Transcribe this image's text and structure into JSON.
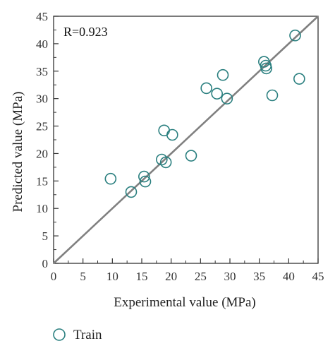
{
  "chart_data": {
    "type": "scatter",
    "title": "",
    "xlabel": "Experimental value (MPa)",
    "ylabel": "Predicted value (MPa)",
    "xlim": [
      0,
      45
    ],
    "ylim": [
      0,
      45
    ],
    "xticks": [
      "0",
      "5",
      "10",
      "15",
      "20",
      "25",
      "30",
      "35",
      "40",
      "45"
    ],
    "yticks": [
      "0",
      "5",
      "10",
      "15",
      "20",
      "25",
      "30",
      "35",
      "40",
      "45"
    ],
    "annotation": "R=0.923",
    "grid": false,
    "legend_position": "bottom-left",
    "reference_line": {
      "type": "y=x",
      "color": "#808080"
    },
    "series": [
      {
        "name": "Train",
        "marker": "open-circle",
        "color": "#2a7f7f",
        "points": [
          {
            "x": 9.7,
            "y": 15.4
          },
          {
            "x": 13.2,
            "y": 13.0
          },
          {
            "x": 15.4,
            "y": 15.8
          },
          {
            "x": 15.6,
            "y": 14.9
          },
          {
            "x": 18.4,
            "y": 18.9
          },
          {
            "x": 18.8,
            "y": 24.2
          },
          {
            "x": 19.1,
            "y": 18.4
          },
          {
            "x": 20.2,
            "y": 23.4
          },
          {
            "x": 23.4,
            "y": 19.6
          },
          {
            "x": 26.0,
            "y": 31.9
          },
          {
            "x": 27.8,
            "y": 30.9
          },
          {
            "x": 28.8,
            "y": 34.3
          },
          {
            "x": 29.5,
            "y": 30.0
          },
          {
            "x": 35.8,
            "y": 36.7
          },
          {
            "x": 36.1,
            "y": 36.0
          },
          {
            "x": 36.2,
            "y": 35.5
          },
          {
            "x": 37.2,
            "y": 30.6
          },
          {
            "x": 41.1,
            "y": 41.5
          },
          {
            "x": 41.8,
            "y": 33.6
          }
        ]
      }
    ]
  }
}
